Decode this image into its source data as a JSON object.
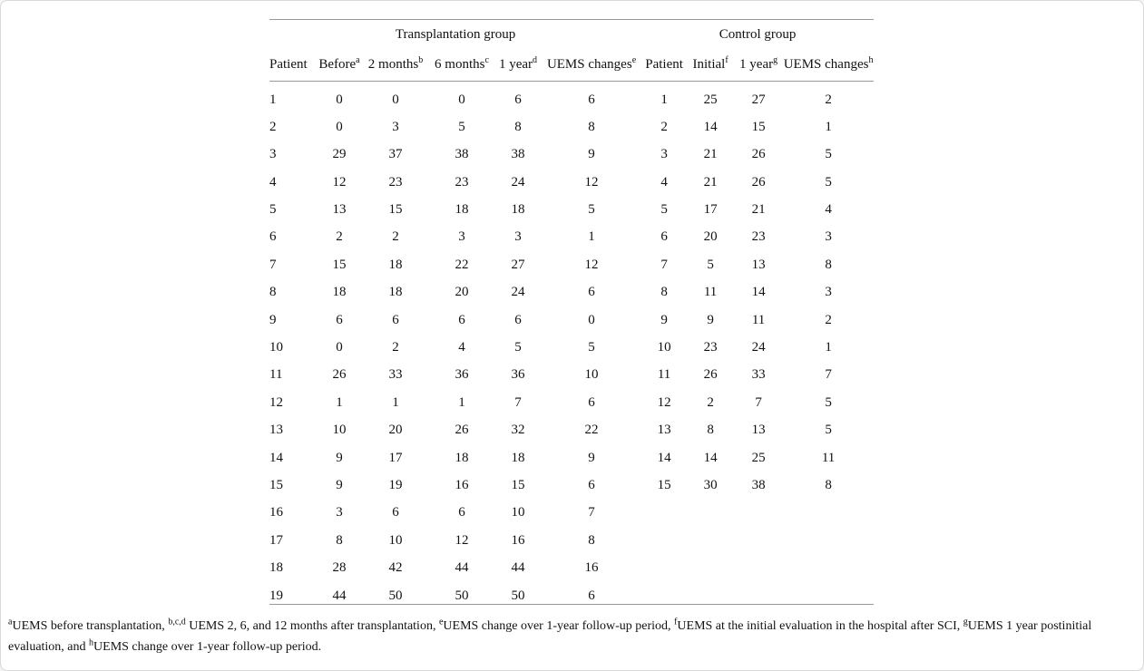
{
  "page": {
    "background": "#ffffff",
    "frame_border_color": "#d9d9d9",
    "rule_color": "#999999",
    "text_color": "#111111"
  },
  "table": {
    "group_headers": [
      {
        "label": "Transplantation group",
        "colspan": 6
      },
      {
        "label": "Control group",
        "colspan": 4
      }
    ],
    "columns": [
      {
        "label": "Patient",
        "sup": "",
        "align": "left"
      },
      {
        "label": "Before",
        "sup": "a",
        "align": "center"
      },
      {
        "label": "2 months",
        "sup": "b",
        "align": "center"
      },
      {
        "label": "6 months",
        "sup": "c",
        "align": "center"
      },
      {
        "label": "1 year",
        "sup": "d",
        "align": "center"
      },
      {
        "label": "UEMS changes",
        "sup": "e",
        "align": "center"
      },
      {
        "label": "Patient",
        "sup": "",
        "align": "center"
      },
      {
        "label": "Initial",
        "sup": "f",
        "align": "center"
      },
      {
        "label": "1 year",
        "sup": "g",
        "align": "center"
      },
      {
        "label": "UEMS changes",
        "sup": "h",
        "align": "center"
      }
    ],
    "rows": [
      [
        "1",
        "0",
        "0",
        "0",
        "6",
        "6",
        "1",
        "25",
        "27",
        "2"
      ],
      [
        "2",
        "0",
        "3",
        "5",
        "8",
        "8",
        "2",
        "14",
        "15",
        "1"
      ],
      [
        "3",
        "29",
        "37",
        "38",
        "38",
        "9",
        "3",
        "21",
        "26",
        "5"
      ],
      [
        "4",
        "12",
        "23",
        "23",
        "24",
        "12",
        "4",
        "21",
        "26",
        "5"
      ],
      [
        "5",
        "13",
        "15",
        "18",
        "18",
        "5",
        "5",
        "17",
        "21",
        "4"
      ],
      [
        "6",
        "2",
        "2",
        "3",
        "3",
        "1",
        "6",
        "20",
        "23",
        "3"
      ],
      [
        "7",
        "15",
        "18",
        "22",
        "27",
        "12",
        "7",
        "5",
        "13",
        "8"
      ],
      [
        "8",
        "18",
        "18",
        "20",
        "24",
        "6",
        "8",
        "11",
        "14",
        "3"
      ],
      [
        "9",
        "6",
        "6",
        "6",
        "6",
        "0",
        "9",
        "9",
        "11",
        "2"
      ],
      [
        "10",
        "0",
        "2",
        "4",
        "5",
        "5",
        "10",
        "23",
        "24",
        "1"
      ],
      [
        "11",
        "26",
        "33",
        "36",
        "36",
        "10",
        "11",
        "26",
        "33",
        "7"
      ],
      [
        "12",
        "1",
        "1",
        "1",
        "7",
        "6",
        "12",
        "2",
        "7",
        "5"
      ],
      [
        "13",
        "10",
        "20",
        "26",
        "32",
        "22",
        "13",
        "8",
        "13",
        "5"
      ],
      [
        "14",
        "9",
        "17",
        "18",
        "18",
        "9",
        "14",
        "14",
        "25",
        "11"
      ],
      [
        "15",
        "9",
        "19",
        "16",
        "15",
        "6",
        "15",
        "30",
        "38",
        "8"
      ],
      [
        "16",
        "3",
        "6",
        "6",
        "10",
        "7",
        "",
        "",
        "",
        ""
      ],
      [
        "17",
        "8",
        "10",
        "12",
        "16",
        "8",
        "",
        "",
        "",
        ""
      ],
      [
        "18",
        "28",
        "42",
        "44",
        "44",
        "16",
        "",
        "",
        "",
        ""
      ],
      [
        "19",
        "44",
        "50",
        "50",
        "50",
        "6",
        "",
        "",
        "",
        ""
      ]
    ]
  },
  "footnote": {
    "segments": [
      {
        "sup": "a"
      },
      {
        "text": "UEMS before transplantation, "
      },
      {
        "sup": "b,c,d"
      },
      {
        "text": " UEMS 2, 6, and 12 months after transplantation, "
      },
      {
        "sup": "e"
      },
      {
        "text": "UEMS change over 1-year follow-up period, "
      },
      {
        "sup": "f"
      },
      {
        "text": "UEMS at the initial evaluation in the hospital after SCI, "
      },
      {
        "sup": "g"
      },
      {
        "text": "UEMS 1 year postinitial evaluation, and "
      },
      {
        "sup": "h"
      },
      {
        "text": "UEMS change over 1-year follow-up period."
      }
    ]
  }
}
